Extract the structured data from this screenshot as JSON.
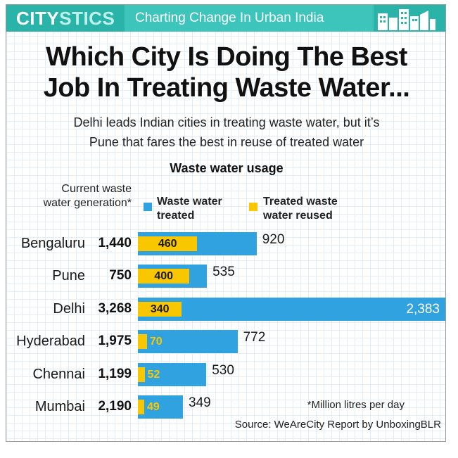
{
  "banner": {
    "brand_part1": "CITY",
    "brand_part2": "STICS",
    "tagline": "Charting Change In Urban India",
    "skyline_icon": "city-skyline-icon"
  },
  "header": {
    "title_line1": "Which City Is Doing The Best",
    "title_line2": "Job In Treating Waste Water...",
    "subtitle_line1": "Delhi leads Indian cities in treating waste water, but it’s",
    "subtitle_line2": "Pune that fares the best in reuse of treated water"
  },
  "legend": {
    "generation_line1": "Current waste",
    "generation_line2": "water generation*",
    "treated_line1": "Waste water",
    "treated_line2": "treated",
    "reused_line1": "Treated waste",
    "reused_line2": "water reused"
  },
  "chart_data": {
    "type": "bar",
    "orientation": "horizontal",
    "title": "Waste water usage",
    "categories": [
      "Bengaluru",
      "Pune",
      "Delhi",
      "Hyderabad",
      "Chennai",
      "Mumbai"
    ],
    "generation": [
      "1,440",
      "750",
      "3,268",
      "1,975",
      "1,199",
      "2,190"
    ],
    "series": [
      {
        "name": "Waste water treated",
        "values": [
          920,
          535,
          2383,
          772,
          530,
          349
        ],
        "labels": [
          "920",
          "535",
          "2,383",
          "772",
          "530",
          "349"
        ],
        "color": "#30a2e0"
      },
      {
        "name": "Treated waste water reused",
        "values": [
          460,
          400,
          340,
          70,
          52,
          49
        ],
        "labels": [
          "460",
          "400",
          "340",
          "70",
          "52",
          "49"
        ],
        "color": "#f9c700"
      }
    ],
    "xlim": [
      0,
      2383
    ],
    "grid": false
  },
  "footer": {
    "unit_note": "*Million litres per day",
    "source": "Source: WeAreCity Report by UnboxingBLR"
  },
  "colors": {
    "banner": "#2ab3a8",
    "treated": "#30a2e0",
    "reused": "#f9c700"
  }
}
